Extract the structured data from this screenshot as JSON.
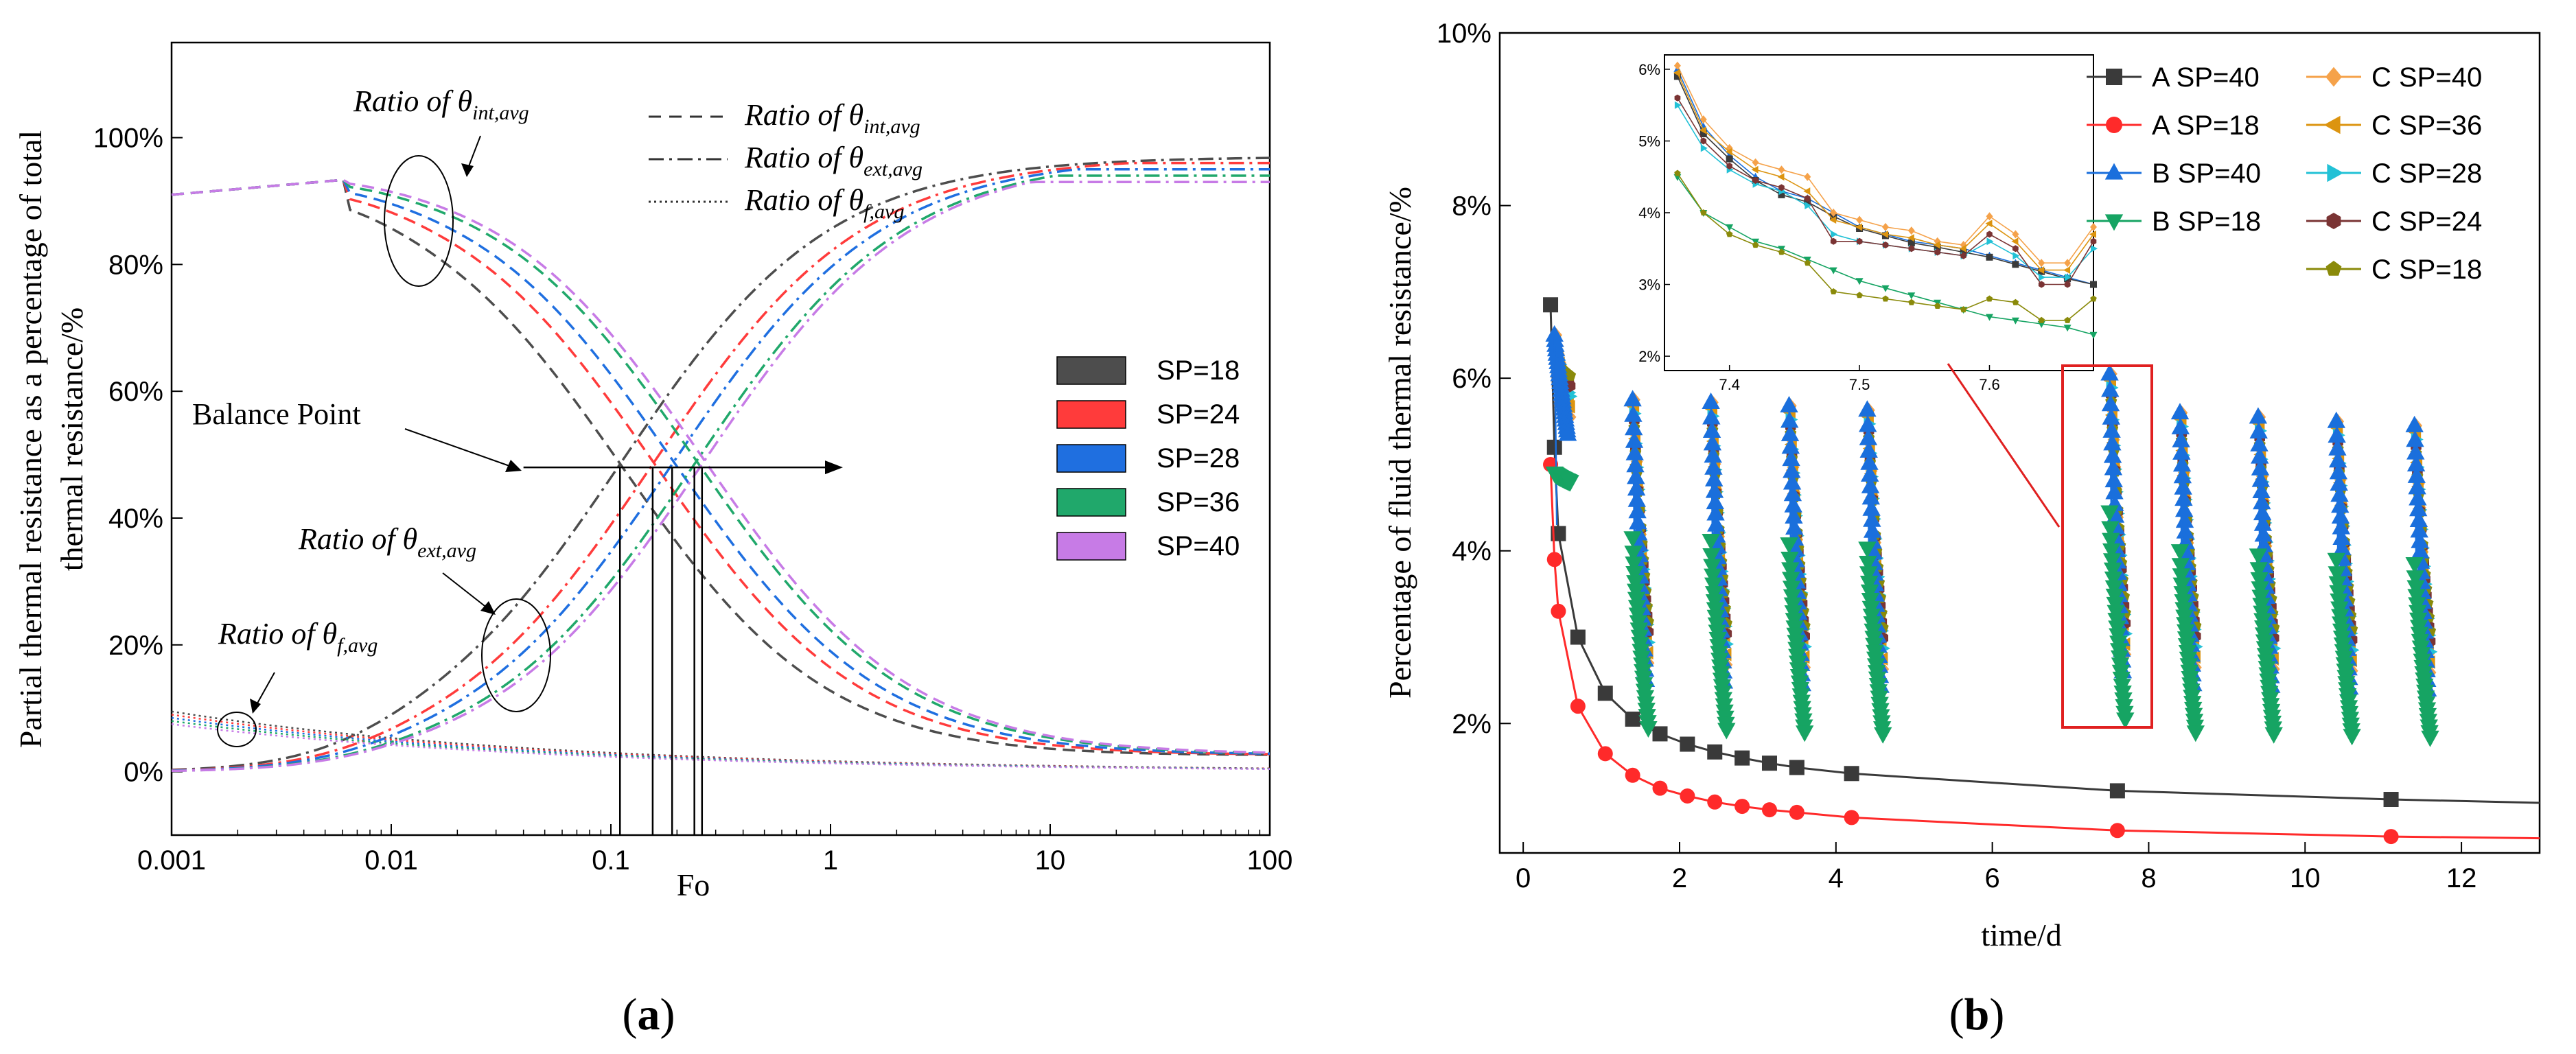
{
  "chart_data": [
    {
      "type": "line",
      "panel_label": "a",
      "xlabel": "Fo",
      "ylabel_lines": [
        "Partial thermal resistance as a percentage of total",
        "thermal resistance/%"
      ],
      "x_scale": "log",
      "xlim": [
        0.001,
        100
      ],
      "ylim": [
        -10,
        115
      ],
      "x_ticks": [
        0.001,
        0.01,
        0.1,
        1,
        10,
        100
      ],
      "x_tick_labels": [
        "0.001",
        "0.01",
        "0.1",
        "1",
        "10",
        "100"
      ],
      "y_ticks": [
        0,
        20,
        40,
        60,
        80,
        100
      ],
      "y_tick_labels": [
        "0%",
        "20%",
        "40%",
        "60%",
        "80%",
        "100%"
      ],
      "color_legend": [
        {
          "name": "SP=18",
          "color": "#4d4d4d"
        },
        {
          "name": "SP=24",
          "color": "#ff3b3b"
        },
        {
          "name": "SP=28",
          "color": "#1f6fe0"
        },
        {
          "name": "SP=36",
          "color": "#20a86b"
        },
        {
          "name": "SP=40",
          "color": "#c77be6"
        }
      ],
      "style_legend": [
        {
          "main": "Ratio of θ",
          "sub": "int,avg",
          "dash": "dashed"
        },
        {
          "main": "Ratio of θ",
          "sub": "ext,avg",
          "dash": "dashdot"
        },
        {
          "main": "Ratio of θ",
          "sub": "f,avg",
          "dash": "dotted"
        }
      ],
      "annotations": {
        "int_label": {
          "main": "Ratio of θ",
          "sub": "int,avg"
        },
        "ext_label": {
          "main": "Ratio of θ",
          "sub": "ext,avg"
        },
        "f_label": {
          "main": "Ratio of θ",
          "sub": "f,avg"
        },
        "balance": "Balance Point"
      },
      "balance_points_fo": [
        0.11,
        0.155,
        0.19,
        0.24,
        0.26
      ],
      "balance_value": 48,
      "series_params": [
        {
          "name": "SP=18",
          "fo_balance": 0.11
        },
        {
          "name": "SP=24",
          "fo_balance": 0.155
        },
        {
          "name": "SP=28",
          "fo_balance": 0.19
        },
        {
          "name": "SP=36",
          "fo_balance": 0.24
        },
        {
          "name": "SP=40",
          "fo_balance": 0.26
        }
      ],
      "fluid_ratio_start": [
        9.5,
        9.0,
        8.5,
        8.0,
        7.5
      ]
    },
    {
      "type": "scatter",
      "panel_label": "b",
      "xlabel": "time/d",
      "ylabel": "Percentage of fluid thermal resistance/%",
      "xlim": [
        -0.3,
        13
      ],
      "ylim": [
        0.5,
        10
      ],
      "x_ticks": [
        0,
        2,
        4,
        6,
        8,
        10,
        12
      ],
      "x_tick_labels": [
        "0",
        "2",
        "4",
        "6",
        "8",
        "10",
        "12"
      ],
      "y_ticks": [
        2,
        4,
        6,
        8,
        10
      ],
      "y_tick_labels": [
        "2%",
        "4%",
        "6%",
        "8%",
        "10%"
      ],
      "legend": [
        {
          "name": "A SP=40",
          "color": "#3a3a3a",
          "marker": "square"
        },
        {
          "name": "A SP=18",
          "color": "#ff2a2a",
          "marker": "circle"
        },
        {
          "name": "B SP=40",
          "color": "#1a6fdc",
          "marker": "triangle-up"
        },
        {
          "name": "B SP=18",
          "color": "#16a463",
          "marker": "triangle-down"
        },
        {
          "name": "C SP=40",
          "color": "#f5a24a",
          "marker": "diamond"
        },
        {
          "name": "C SP=36",
          "color": "#dc9410",
          "marker": "triangle-left"
        },
        {
          "name": "C SP=28",
          "color": "#22c1d6",
          "marker": "triangle-right"
        },
        {
          "name": "C SP=24",
          "color": "#7a3434",
          "marker": "hexagon"
        },
        {
          "name": "C SP=18",
          "color": "#8a8a0a",
          "marker": "pentagon"
        }
      ],
      "series": [
        {
          "name": "A SP=40",
          "x": [
            0.35,
            0.4,
            0.45,
            0.7,
            1.05,
            1.4,
            1.75,
            2.1,
            2.45,
            2.8,
            3.15,
            3.5,
            4.2,
            7.6,
            11.1,
            13
          ],
          "y": [
            6.85,
            5.2,
            4.2,
            3.0,
            2.35,
            2.05,
            1.88,
            1.76,
            1.67,
            1.6,
            1.54,
            1.49,
            1.42,
            1.22,
            1.12,
            1.08
          ]
        },
        {
          "name": "A SP=18",
          "x": [
            0.35,
            0.4,
            0.45,
            0.7,
            1.05,
            1.4,
            1.75,
            2.1,
            2.45,
            2.8,
            3.15,
            3.5,
            4.2,
            7.6,
            11.1,
            13
          ],
          "y": [
            5.0,
            3.9,
            3.3,
            2.2,
            1.65,
            1.4,
            1.25,
            1.16,
            1.09,
            1.04,
            1.0,
            0.97,
            0.91,
            0.76,
            0.69,
            0.67
          ]
        },
        {
          "name": "B SP=40",
          "x": [
            0.4,
            1.4,
            2.4,
            3.4,
            4.4,
            7.5,
            8.4,
            9.4,
            10.4,
            11.4
          ],
          "y": [
            6.5,
            5.75,
            5.72,
            5.68,
            5.63,
            6.05,
            5.6,
            5.55,
            5.5,
            5.45
          ]
        },
        {
          "name": "B SP=18",
          "x": [
            0.4,
            1.4,
            2.4,
            3.4,
            4.4,
            7.5,
            8.4,
            9.4,
            10.4,
            11.4
          ],
          "y": [
            4.8,
            1.95,
            1.93,
            1.9,
            1.88,
            2.05,
            1.9,
            1.88,
            1.86,
            1.84
          ]
        }
      ],
      "inset": {
        "xlim": [
          7.35,
          7.68
        ],
        "ylim": [
          1.8,
          6.2
        ],
        "x_ticks": [
          7.4,
          7.5,
          7.6
        ],
        "x_tick_labels": [
          "7.4",
          "7.5",
          "7.6"
        ],
        "y_ticks": [
          2,
          3,
          4,
          5,
          6
        ],
        "y_tick_labels": [
          "2%",
          "3%",
          "4%",
          "5%",
          "6%"
        ],
        "x": [
          7.36,
          7.38,
          7.4,
          7.42,
          7.44,
          7.46,
          7.48,
          7.5,
          7.52,
          7.54,
          7.56,
          7.58,
          7.6,
          7.62,
          7.64,
          7.66,
          7.68
        ],
        "series": [
          {
            "name": "B SP=40",
            "y": [
              6.0,
              5.2,
              4.8,
              4.5,
              4.3,
              4.2,
              4.0,
              3.8,
              3.7,
              3.6,
              3.55,
              3.5,
              3.4,
              3.3,
              3.2,
              3.1,
              3.0
            ]
          },
          {
            "name": "A SP=40",
            "y": [
              5.9,
              5.1,
              4.75,
              4.45,
              4.25,
              4.15,
              3.95,
              3.78,
              3.68,
              3.58,
              3.52,
              3.45,
              3.38,
              3.28,
              3.18,
              3.08,
              3.0
            ]
          },
          {
            "name": "C SP=40",
            "y": [
              6.05,
              5.3,
              4.9,
              4.7,
              4.6,
              4.5,
              4.0,
              3.9,
              3.8,
              3.75,
              3.6,
              3.55,
              3.95,
              3.7,
              3.3,
              3.3,
              3.8
            ]
          },
          {
            "name": "C SP=36",
            "y": [
              5.95,
              5.15,
              4.85,
              4.6,
              4.5,
              4.3,
              3.9,
              3.8,
              3.7,
              3.65,
              3.55,
              3.5,
              3.85,
              3.6,
              3.2,
              3.2,
              3.7
            ]
          },
          {
            "name": "C SP=28",
            "y": [
              5.5,
              4.9,
              4.6,
              4.4,
              4.3,
              4.1,
              3.7,
              3.6,
              3.55,
              3.5,
              3.45,
              3.4,
              3.6,
              3.4,
              3.1,
              3.1,
              3.5
            ]
          },
          {
            "name": "C SP=24",
            "y": [
              5.6,
              5.0,
              4.65,
              4.45,
              4.35,
              4.2,
              3.6,
              3.6,
              3.55,
              3.5,
              3.45,
              3.4,
              3.7,
              3.5,
              3.0,
              3.0,
              3.6
            ]
          },
          {
            "name": "B SP=18",
            "y": [
              4.5,
              4.0,
              3.8,
              3.6,
              3.5,
              3.35,
              3.2,
              3.05,
              2.95,
              2.85,
              2.75,
              2.65,
              2.55,
              2.5,
              2.45,
              2.4,
              2.3
            ]
          },
          {
            "name": "C SP=18",
            "y": [
              4.55,
              4.0,
              3.7,
              3.55,
              3.45,
              3.3,
              2.9,
              2.85,
              2.8,
              2.75,
              2.7,
              2.65,
              2.8,
              2.75,
              2.5,
              2.5,
              2.8
            ]
          }
        ]
      }
    }
  ]
}
